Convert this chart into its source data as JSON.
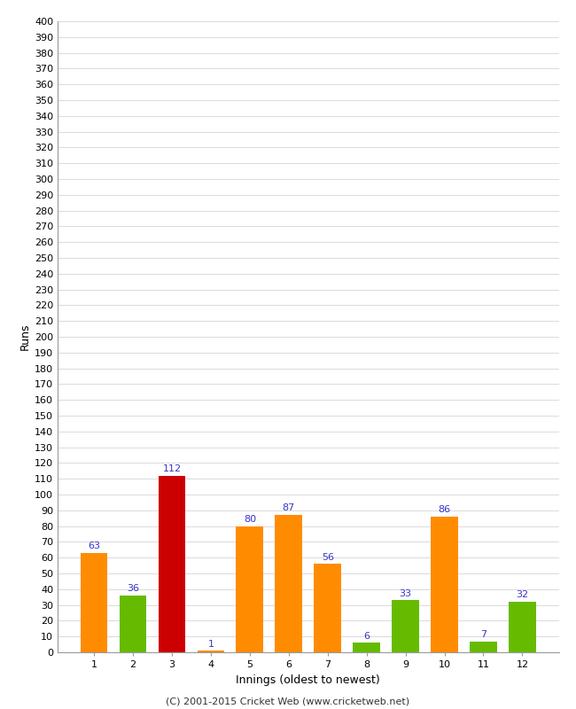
{
  "title": "",
  "xlabel": "Innings (oldest to newest)",
  "ylabel": "Runs",
  "categories": [
    "1",
    "2",
    "3",
    "4",
    "5",
    "6",
    "7",
    "8",
    "9",
    "10",
    "11",
    "12"
  ],
  "values": [
    63,
    36,
    112,
    1,
    80,
    87,
    56,
    6,
    33,
    86,
    7,
    32
  ],
  "colors": [
    "#FF8C00",
    "#66BB00",
    "#CC0000",
    "#FF8C00",
    "#FF8C00",
    "#FF8C00",
    "#FF8C00",
    "#66BB00",
    "#66BB00",
    "#FF8C00",
    "#66BB00",
    "#66BB00"
  ],
  "label_color": "#3333CC",
  "ylim": [
    0,
    400
  ],
  "ytick_step": 10,
  "background_color": "#FFFFFF",
  "grid_color": "#CCCCCC",
  "footer": "(C) 2001-2015 Cricket Web (www.cricketweb.net)",
  "bar_width": 0.7,
  "ylabel_fontsize": 9,
  "xlabel_fontsize": 9,
  "tick_fontsize": 8,
  "label_fontsize": 8
}
